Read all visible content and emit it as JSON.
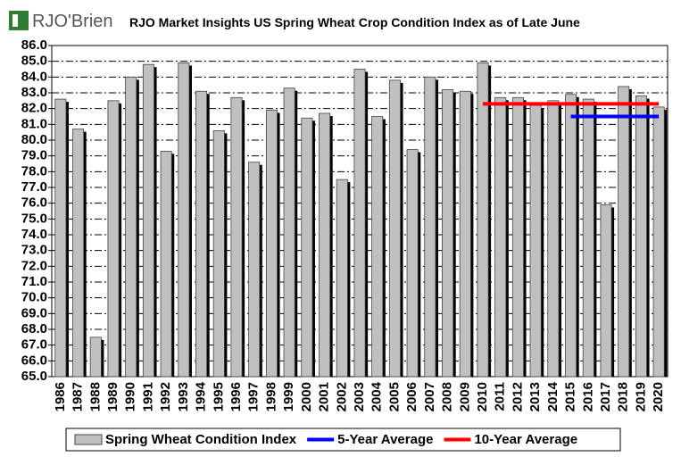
{
  "brand": "RJO'Brien",
  "chart_data": {
    "type": "bar",
    "title": "RJO Market Insights US Spring Wheat Crop Condition Index as of Late June",
    "categories": [
      "1986",
      "1987",
      "1988",
      "1989",
      "1990",
      "1991",
      "1992",
      "1993",
      "1994",
      "1995",
      "1996",
      "1997",
      "1998",
      "1999",
      "2000",
      "2001",
      "2002",
      "2003",
      "2004",
      "2005",
      "2006",
      "2007",
      "2008",
      "2009",
      "2010",
      "2011",
      "2012",
      "2013",
      "2014",
      "2015",
      "2016",
      "2017",
      "2018",
      "2019",
      "2020"
    ],
    "series": [
      {
        "name": "Spring Wheat Condition Index",
        "color": "#c0c0c0",
        "kind": "bar",
        "values": [
          82.6,
          80.7,
          67.5,
          82.5,
          84.0,
          84.8,
          79.3,
          84.9,
          83.1,
          80.6,
          82.7,
          78.6,
          81.9,
          83.3,
          81.4,
          81.7,
          77.5,
          84.5,
          81.5,
          83.8,
          79.4,
          84.0,
          83.2,
          83.1,
          84.9,
          82.7,
          82.7,
          82.2,
          82.5,
          82.9,
          82.6,
          75.9,
          83.4,
          82.8,
          82.1
        ]
      },
      {
        "name": "5-Year Average",
        "color": "#0000ff",
        "kind": "line",
        "values": [
          null,
          null,
          null,
          null,
          null,
          null,
          null,
          null,
          null,
          null,
          null,
          null,
          null,
          null,
          null,
          null,
          null,
          null,
          null,
          null,
          null,
          null,
          null,
          null,
          null,
          null,
          null,
          null,
          null,
          81.5,
          81.5,
          81.5,
          81.5,
          81.5,
          81.5
        ]
      },
      {
        "name": "10-Year Average",
        "color": "#ff0000",
        "kind": "line",
        "values": [
          null,
          null,
          null,
          null,
          null,
          null,
          null,
          null,
          null,
          null,
          null,
          null,
          null,
          null,
          null,
          null,
          null,
          null,
          null,
          null,
          null,
          null,
          null,
          null,
          82.3,
          82.3,
          82.3,
          82.3,
          82.3,
          82.3,
          82.3,
          82.3,
          82.3,
          82.3,
          82.3
        ]
      }
    ],
    "ylim": [
      65,
      86
    ],
    "yticks": [
      {
        "value": 65,
        "label": "65.0"
      },
      {
        "value": 66,
        "label": "66.0"
      },
      {
        "value": 67,
        "label": "67.0"
      },
      {
        "value": 68,
        "label": "68.0"
      },
      {
        "value": 69,
        "label": "69.0"
      },
      {
        "value": 70,
        "label": "70.0"
      },
      {
        "value": 71,
        "label": "71.0"
      },
      {
        "value": 72,
        "label": "72.0"
      },
      {
        "value": 73,
        "label": "73.0"
      },
      {
        "value": 74,
        "label": "74.0"
      },
      {
        "value": 75,
        "label": "75.0"
      },
      {
        "value": 76,
        "label": "76.0"
      },
      {
        "value": 77,
        "label": "77.0"
      },
      {
        "value": 78,
        "label": "78.0"
      },
      {
        "value": 79,
        "label": "79.0"
      },
      {
        "value": 80,
        "label": "80.0"
      },
      {
        "value": 81,
        "label": "81.0"
      },
      {
        "value": 82,
        "label": "82.0"
      },
      {
        "value": 83,
        "label": "83.0"
      },
      {
        "value": 84,
        "label": "84.0"
      },
      {
        "value": 85,
        "label": "85.0"
      },
      {
        "value": 86,
        "label": "86.0"
      }
    ],
    "grid": true,
    "legend": "bottom"
  }
}
